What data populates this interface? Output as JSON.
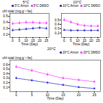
{
  "chart_data": [
    {
      "type": "line",
      "title": "5°C",
      "xlabel": "Time (Day)",
      "ylabel": "chl total (mg g⁻¹ fw)",
      "x": [
        0,
        5,
        10,
        15,
        20,
        25
      ],
      "xlim": [
        -2,
        27
      ],
      "xticks": [
        0,
        5,
        10,
        15,
        20,
        25
      ],
      "ylim": [
        0.15,
        0.55
      ],
      "yticks": [
        0.2,
        0.3,
        0.4,
        0.5
      ],
      "legend": "upper right",
      "marker": "square",
      "series": [
        {
          "name": "5°C Arnon",
          "color": "#3333cc",
          "values": [
            0.27,
            0.28,
            0.29,
            0.3,
            0.31,
            0.3
          ],
          "errors": [
            0.025,
            0.025,
            0.025,
            0.025,
            0.025,
            0.025
          ]
        },
        {
          "name": "5°C DMSO",
          "color": "#ff44ff",
          "values": [
            0.38,
            0.39,
            0.4,
            0.4,
            0.39,
            0.39
          ],
          "errors": [
            0.03,
            0.03,
            0.03,
            0.03,
            0.03,
            0.03
          ]
        }
      ]
    },
    {
      "type": "line",
      "title": "10°C",
      "xlabel": "Time (Day)",
      "x": [
        0,
        5,
        10,
        15,
        20,
        25
      ],
      "xlim": [
        -2,
        27
      ],
      "xticks": [
        0,
        5,
        10,
        15,
        20,
        25
      ],
      "ylim": [
        0.1,
        0.65
      ],
      "yticks": [
        0.2,
        0.3,
        0.4,
        0.5
      ],
      "legend": "upper right",
      "marker": "square",
      "series": [
        {
          "name": "10°C Arnon",
          "color": "#3333cc",
          "values": [
            0.27,
            0.26,
            0.26,
            0.26,
            0.26,
            0.26
          ],
          "errors": [
            0.025,
            0.025,
            0.025,
            0.025,
            0.025,
            0.025
          ]
        },
        {
          "name": "10°C DMSO",
          "color": "#ff44ff",
          "values": [
            0.5,
            0.45,
            0.4,
            0.37,
            0.36,
            0.36
          ],
          "errors": [
            0.04,
            0.04,
            0.04,
            0.04,
            0.04,
            0.04
          ]
        }
      ]
    },
    {
      "type": "line",
      "title": "20°C",
      "xlabel": "Time (Day)",
      "ylabel": "chl total (mg g⁻¹ fw)",
      "x": [
        0,
        5,
        10,
        15,
        20,
        25
      ],
      "xlim": [
        -2,
        27
      ],
      "xticks": [
        0,
        5,
        10,
        15,
        20,
        25
      ],
      "ylim": [
        0.0,
        0.7
      ],
      "yticks": [
        0.1,
        0.2,
        0.3,
        0.4,
        0.5,
        0.6
      ],
      "legend": "upper right",
      "marker": "square",
      "series": [
        {
          "name": "20°C Arnon",
          "color": "#3333cc",
          "values": [
            0.3,
            0.25,
            0.2,
            0.15,
            0.1,
            0.07
          ],
          "errors": [
            0.03,
            0.025,
            0.02,
            0.02,
            0.015,
            0.015
          ]
        },
        {
          "name": "20°C DMSO",
          "color": "#ff44ff",
          "values": [
            0.55,
            0.47,
            0.38,
            0.3,
            0.26,
            0.22
          ],
          "errors": [
            0.04,
            0.04,
            0.04,
            0.03,
            0.03,
            0.03
          ]
        }
      ]
    }
  ]
}
